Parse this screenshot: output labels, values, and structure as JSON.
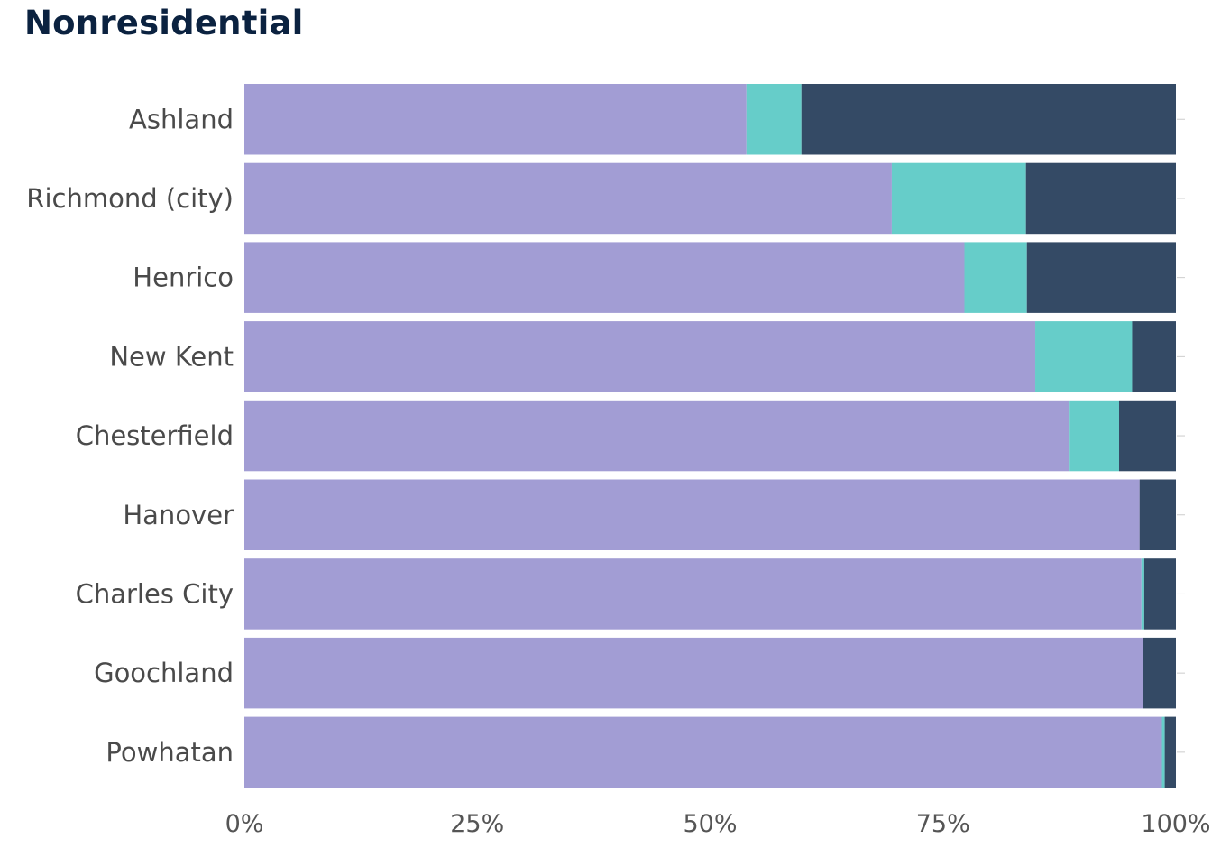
{
  "chart_data": {
    "type": "bar",
    "orientation": "horizontal",
    "stacked": true,
    "title": "Nonresidential",
    "xlim": [
      0,
      100
    ],
    "x_ticks": [
      "0%",
      "25%",
      "50%",
      "75%",
      "100%"
    ],
    "categories": [
      "Ashland",
      "Richmond (city)",
      "Henrico",
      "New Kent",
      "Chesterfield",
      "Hanover",
      "Charles City",
      "Goochland",
      "Powhatan"
    ],
    "series": [
      {
        "color": "#a29dd4",
        "values": [
          53.9,
          69.5,
          77.3,
          84.9,
          88.5,
          96.1,
          96.3,
          96.5,
          98.5
        ]
      },
      {
        "color": "#66cdc9",
        "values": [
          5.9,
          14.4,
          6.7,
          10.4,
          5.4,
          0.0,
          0.3,
          0.0,
          0.3
        ]
      },
      {
        "color": "#344a65",
        "values": [
          40.2,
          16.1,
          16.0,
          4.7,
          6.1,
          3.9,
          3.4,
          3.5,
          1.2
        ]
      }
    ],
    "grid": false,
    "legend": "none"
  }
}
